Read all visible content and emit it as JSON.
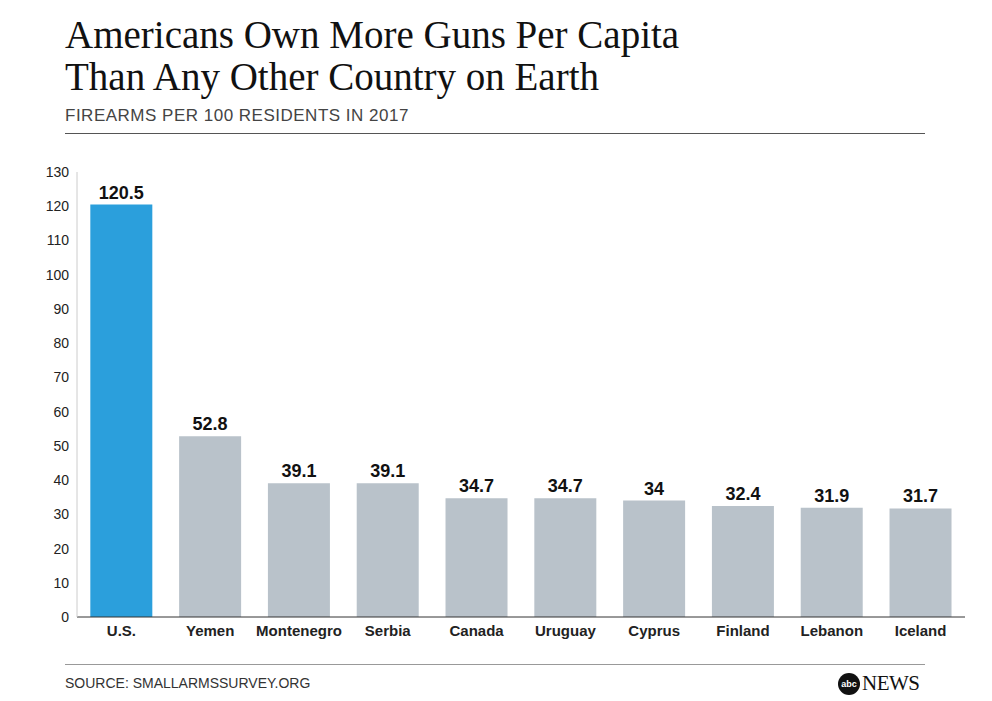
{
  "chart_data": {
    "type": "bar",
    "title": "Americans Own More Guns Per Capita Than Any Other Country on Earth",
    "subtitle": "FIREARMS PER 100 RESIDENTS IN 2017",
    "source": "SOURCE: SMALLARMSSURVEY.ORG",
    "logo": [
      "abc",
      "NEWS"
    ],
    "categories": [
      "U.S.",
      "Yemen",
      "Montenegro",
      "Serbia",
      "Canada",
      "Uruguay",
      "Cyprus",
      "Finland",
      "Lebanon",
      "Iceland"
    ],
    "values": [
      120.5,
      52.8,
      39.1,
      39.1,
      34.7,
      34.7,
      34,
      32.4,
      31.9,
      31.7
    ],
    "colors": [
      "#2b9fdc",
      "#b9c2ca",
      "#b9c2ca",
      "#b9c2ca",
      "#b9c2ca",
      "#b9c2ca",
      "#b9c2ca",
      "#b9c2ca",
      "#b9c2ca",
      "#b9c2ca"
    ],
    "ylim": [
      0,
      130
    ],
    "yticks": [
      0,
      10,
      20,
      30,
      40,
      50,
      60,
      70,
      80,
      90,
      100,
      110,
      120,
      130
    ],
    "grid": false,
    "data_labels": true
  }
}
